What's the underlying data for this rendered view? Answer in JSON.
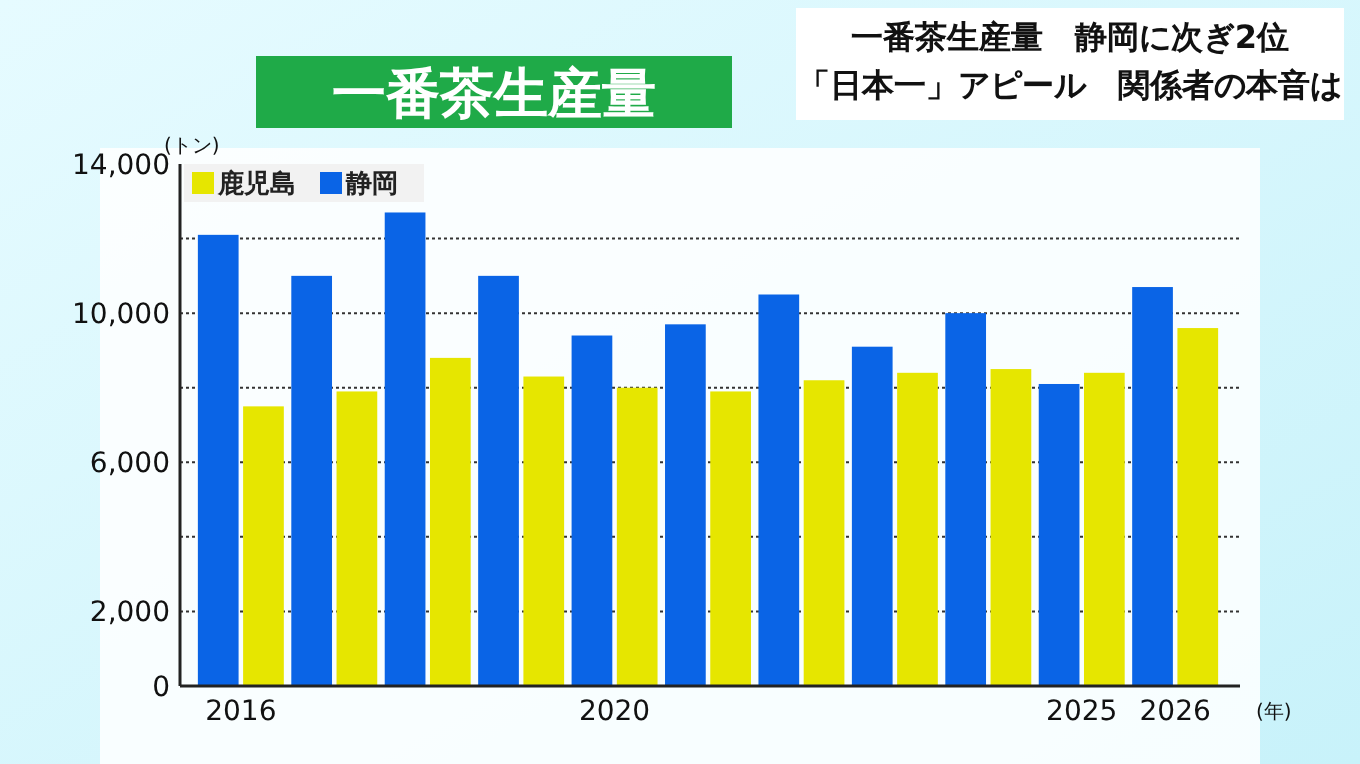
{
  "chart_data": {
    "type": "bar",
    "title": "一番茶生産量",
    "annotations": [
      "一番茶生産量　静岡に次ぎ2位",
      "「日本一」アピール　関係者の本音は"
    ],
    "ylabel": "(トン)",
    "xlabel": "(年)",
    "categories": [
      "2016",
      null,
      null,
      null,
      "2020",
      null,
      null,
      null,
      null,
      "2025",
      "2026"
    ],
    "series": [
      {
        "name": "静岡",
        "color": "#0a64e6",
        "values": [
          12100,
          11000,
          12700,
          11000,
          9400,
          9700,
          10500,
          9100,
          10000,
          8100,
          10700
        ]
      },
      {
        "name": "鹿児島",
        "color": "#e6e600",
        "values": [
          7500,
          7900,
          8800,
          8300,
          8000,
          7900,
          8200,
          8400,
          8500,
          8400,
          9600
        ]
      }
    ],
    "ylim": [
      0,
      14000
    ],
    "yticks": [
      0,
      {
        "value": 2000,
        "label": "2,000"
      },
      {
        "value": 4000,
        "label": null
      },
      {
        "value": 6000,
        "label": "6,000"
      },
      {
        "value": 8000,
        "label": null
      },
      {
        "value": 10000,
        "label": "10,000"
      },
      {
        "value": 12000,
        "label": null
      },
      {
        "value": 14000,
        "label": "14,000"
      }
    ],
    "grid": "y",
    "legend": "top left"
  }
}
